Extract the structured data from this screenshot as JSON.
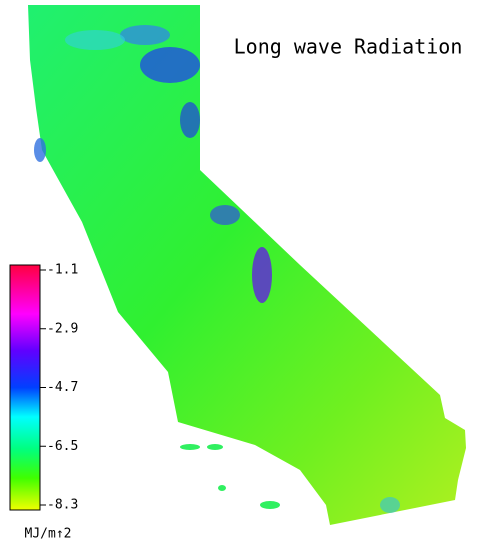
{
  "title": "Long wave Radiation",
  "colorbar": {
    "ticks": [
      -1.1,
      -2.9,
      -4.7,
      -6.5,
      -8.3
    ],
    "unit": "MJ/m↑2"
  }
}
